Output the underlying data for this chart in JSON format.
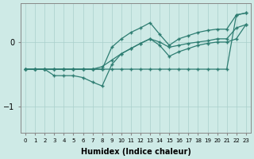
{
  "xlabel": "Humidex (Indice chaleur)",
  "x": [
    0,
    1,
    2,
    3,
    4,
    5,
    6,
    7,
    8,
    9,
    10,
    11,
    12,
    13,
    14,
    15,
    16,
    17,
    18,
    19,
    20,
    21,
    22,
    23
  ],
  "line_flat_high": [
    -0.42,
    -0.42,
    -0.42,
    -0.42,
    -0.42,
    -0.42,
    -0.42,
    -0.42,
    -0.42,
    -0.42,
    -0.42,
    -0.42,
    -0.42,
    -0.42,
    -0.42,
    -0.42,
    -0.42,
    -0.42,
    -0.42,
    -0.42,
    -0.42,
    -0.42,
    0.42,
    0.45
  ],
  "line_diagonal": [
    -0.42,
    -0.42,
    -0.42,
    -0.42,
    -0.42,
    -0.42,
    -0.42,
    -0.42,
    -0.38,
    -0.28,
    -0.18,
    -0.1,
    -0.02,
    0.05,
    0.0,
    -0.08,
    -0.05,
    -0.02,
    0.0,
    0.02,
    0.05,
    0.05,
    0.22,
    0.27
  ],
  "line_zigzag": [
    -0.42,
    -0.42,
    -0.42,
    -0.52,
    -0.52,
    -0.52,
    -0.55,
    -0.62,
    -0.68,
    -0.35,
    -0.18,
    -0.1,
    -0.02,
    0.05,
    -0.05,
    -0.22,
    -0.15,
    -0.1,
    -0.05,
    -0.02,
    0.0,
    0.0,
    0.05,
    0.27
  ],
  "line_steep": [
    -0.42,
    -0.42,
    -0.42,
    -0.42,
    -0.42,
    -0.42,
    -0.42,
    -0.42,
    -0.42,
    -0.08,
    0.05,
    0.15,
    0.22,
    0.3,
    0.12,
    -0.05,
    0.05,
    0.1,
    0.15,
    0.18,
    0.2,
    0.2,
    0.42,
    0.45
  ],
  "ylim": [
    -1.4,
    0.6
  ],
  "yticks": [
    -1,
    0
  ],
  "bg_color": "#ceeae6",
  "line_color": "#2e7d72",
  "grid_color": "#aacfcb"
}
